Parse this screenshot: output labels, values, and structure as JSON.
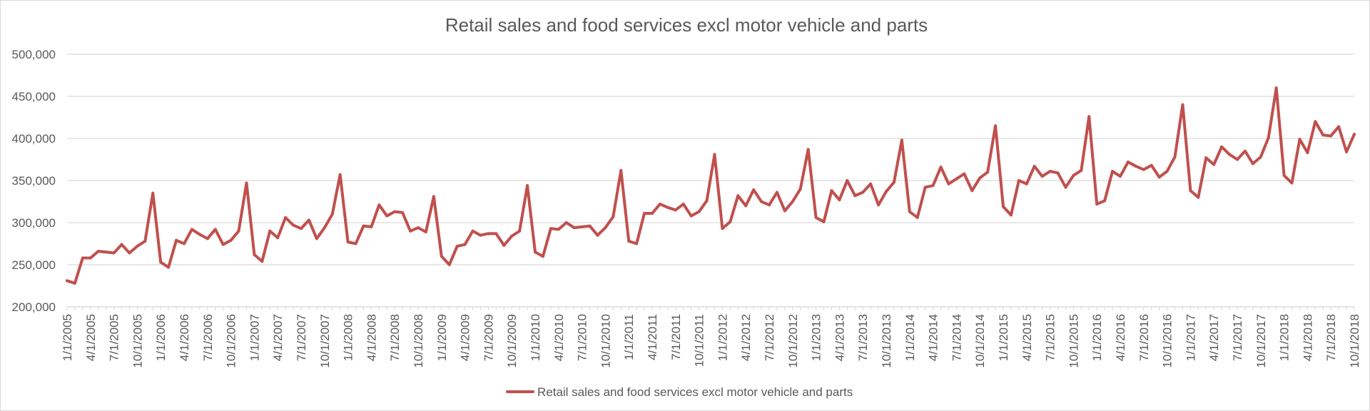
{
  "chart_data": {
    "type": "line",
    "title": "Retail sales and food services excl motor vehicle and parts",
    "xlabel": "",
    "ylabel": "",
    "ylim": [
      200000,
      500000
    ],
    "y_ticks": [
      "200,000",
      "250,000",
      "300,000",
      "350,000",
      "400,000",
      "450,000",
      "500,000"
    ],
    "y_tick_values": [
      200000,
      250000,
      300000,
      350000,
      400000,
      450000,
      500000
    ],
    "x_tick_labels": [
      "1/1/2005",
      "4/1/2005",
      "7/1/2005",
      "10/1/2005",
      "1/1/2006",
      "4/1/2006",
      "7/1/2006",
      "10/1/2006",
      "1/1/2007",
      "4/1/2007",
      "7/1/2007",
      "10/1/2007",
      "1/1/2008",
      "4/1/2008",
      "7/1/2008",
      "10/1/2008",
      "1/1/2009",
      "4/1/2009",
      "7/1/2009",
      "10/1/2009",
      "1/1/2010",
      "4/1/2010",
      "7/1/2010",
      "10/1/2010",
      "1/1/2011",
      "4/1/2011",
      "7/1/2011",
      "10/1/2011",
      "1/1/2012",
      "4/1/2012",
      "7/1/2012",
      "10/1/2012",
      "1/1/2013",
      "4/1/2013",
      "7/1/2013",
      "10/1/2013",
      "1/1/2014",
      "4/1/2014",
      "7/1/2014",
      "10/1/2014",
      "1/1/2015",
      "4/1/2015",
      "7/1/2015",
      "10/1/2015",
      "1/1/2016",
      "4/1/2016",
      "7/1/2016",
      "10/1/2016",
      "1/1/2017",
      "4/1/2017",
      "7/1/2017",
      "10/1/2017",
      "1/1/2018",
      "4/1/2018",
      "7/1/2018",
      "10/1/2018"
    ],
    "x_start": "1/1/2005",
    "x_frequency": "monthly",
    "grid": "horizontal",
    "legend_position": "bottom",
    "series": [
      {
        "name": "Retail sales and food services excl motor vehicle and parts",
        "color": "#c0504d",
        "values": [
          231000,
          228000,
          258000,
          258000,
          266000,
          265000,
          264000,
          274000,
          264000,
          272000,
          278000,
          335000,
          253000,
          247000,
          279000,
          275000,
          292000,
          286000,
          281000,
          292000,
          274000,
          279000,
          290000,
          347000,
          262000,
          254000,
          290000,
          282000,
          306000,
          297000,
          293000,
          303000,
          281000,
          294000,
          310000,
          357000,
          277000,
          275000,
          296000,
          295000,
          321000,
          308000,
          313000,
          312000,
          290000,
          294000,
          289000,
          331000,
          260000,
          250000,
          272000,
          274000,
          290000,
          285000,
          287000,
          287000,
          273000,
          284000,
          290000,
          344000,
          265000,
          260000,
          293000,
          292000,
          300000,
          294000,
          295000,
          296000,
          285000,
          294000,
          307000,
          362000,
          278000,
          275000,
          311000,
          311000,
          322000,
          318000,
          315000,
          322000,
          308000,
          313000,
          326000,
          381000,
          293000,
          301000,
          332000,
          320000,
          339000,
          325000,
          321000,
          336000,
          314000,
          325000,
          340000,
          387000,
          306000,
          301000,
          338000,
          327000,
          350000,
          332000,
          336000,
          346000,
          321000,
          337000,
          348000,
          398000,
          313000,
          306000,
          342000,
          344000,
          366000,
          346000,
          352000,
          358000,
          338000,
          353000,
          360000,
          415000,
          319000,
          309000,
          350000,
          346000,
          367000,
          355000,
          361000,
          359000,
          342000,
          356000,
          362000,
          426000,
          322000,
          326000,
          361000,
          355000,
          372000,
          367000,
          363000,
          368000,
          354000,
          361000,
          378000,
          440000,
          338000,
          330000,
          377000,
          369000,
          390000,
          381000,
          375000,
          385000,
          370000,
          378000,
          401000,
          460000,
          356000,
          347000,
          399000,
          383000,
          420000,
          404000,
          403000,
          414000,
          384000,
          405000
        ]
      }
    ]
  }
}
